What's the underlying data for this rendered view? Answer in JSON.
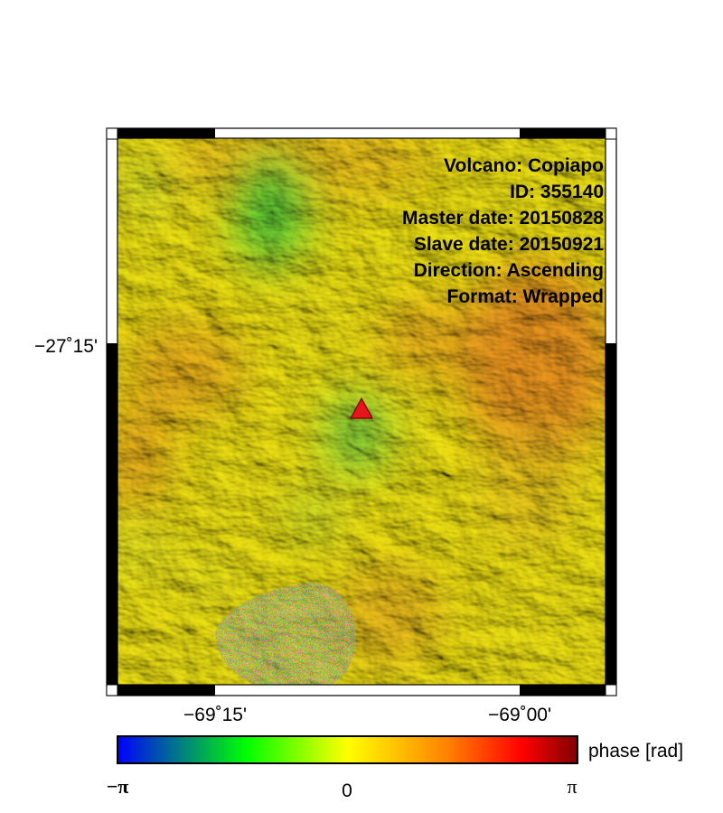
{
  "map": {
    "info_lines": [
      "Volcano: Copiapo",
      "ID: 355140",
      "Master date: 20150828",
      "Slave date: 20150921",
      "Direction: Ascending",
      "Format: Wrapped"
    ],
    "lat_ticks": [
      {
        "label": "−27˚15'"
      }
    ],
    "lon_ticks": [
      {
        "label": "−69˚15'"
      },
      {
        "label": "−69˚00'"
      }
    ],
    "volcano_marker": {
      "color": "#e8141b",
      "symbol": "triangle"
    }
  },
  "colorbar": {
    "label": "phase [rad]",
    "min_label": "−π",
    "mid_label": "0",
    "max_label": "π",
    "colors": [
      "#0000ff",
      "#00ff00",
      "#ffff00",
      "#ff8000",
      "#ff0000",
      "#800000"
    ]
  },
  "colors": {
    "frame": "#000000",
    "background": "#ffffff"
  }
}
